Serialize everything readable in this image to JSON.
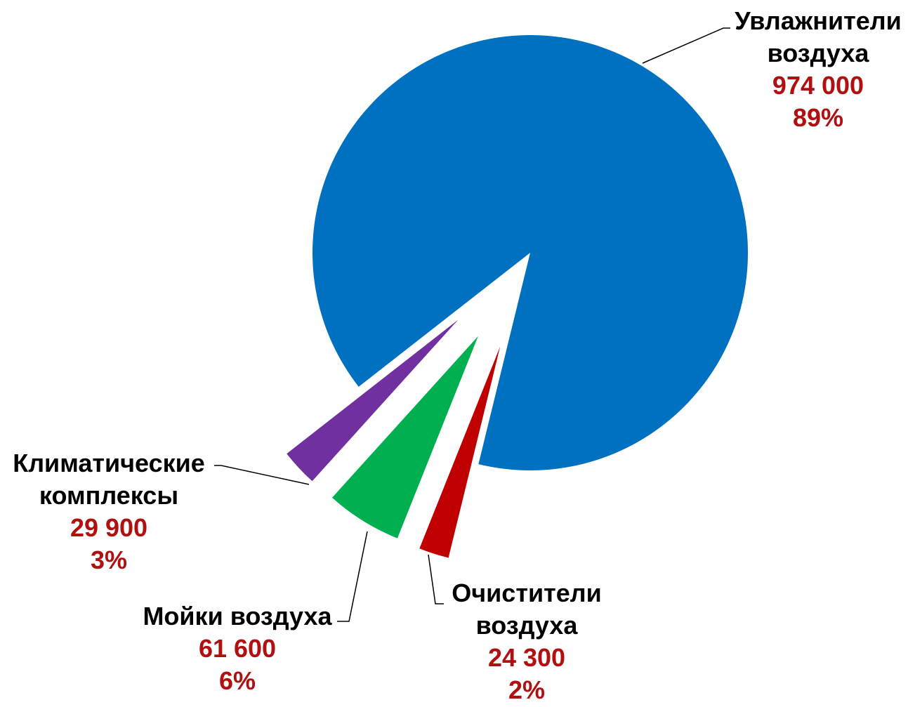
{
  "chart_data": {
    "type": "pie",
    "categories": [
      "Увлажнители воздуха",
      "Очистители воздуха",
      "Мойки воздуха",
      "Климатические комплексы"
    ],
    "values": [
      974000,
      24300,
      61600,
      29900
    ],
    "value_labels": [
      "974 000",
      "24 300",
      "61 600",
      "29 900"
    ],
    "percents": [
      89,
      2,
      6,
      3
    ],
    "percent_labels": [
      "89%",
      "2%",
      "6%",
      "3%"
    ],
    "colors": [
      "#0070c0",
      "#c00000",
      "#00b050",
      "#7030a0"
    ]
  }
}
